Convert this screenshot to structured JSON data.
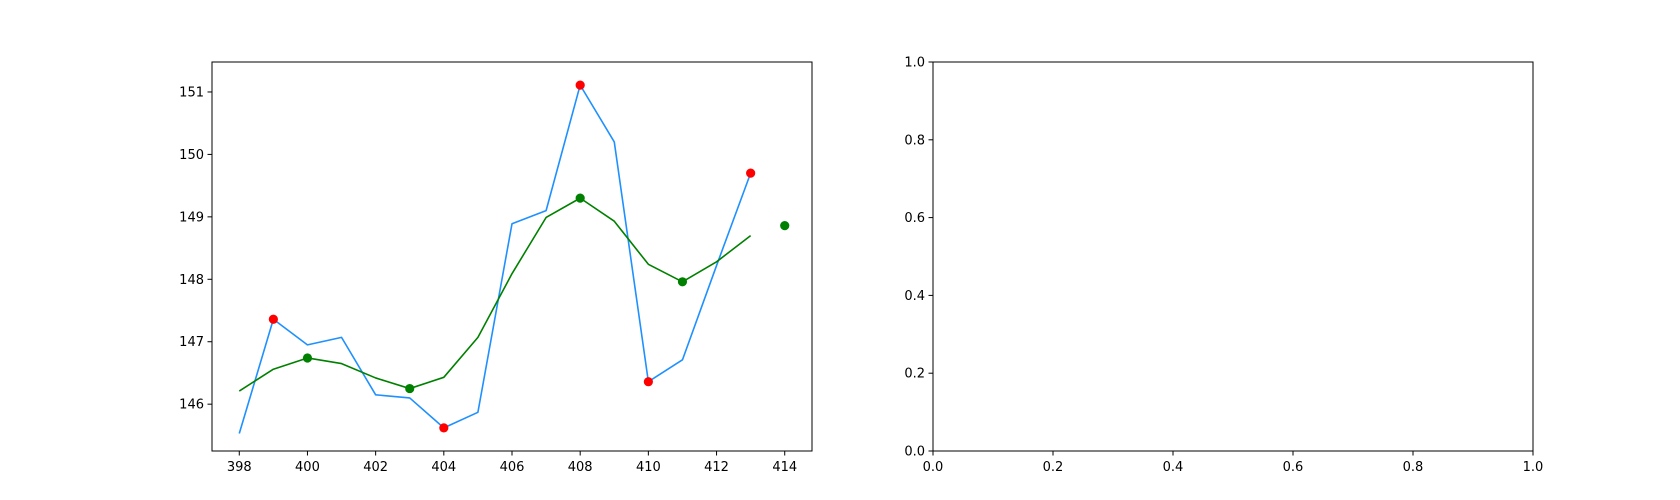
{
  "chart_data": [
    {
      "type": "line",
      "title": "",
      "xlabel": "",
      "ylabel": "",
      "xlim": [
        397.2,
        414.8
      ],
      "ylim": [
        145.25,
        151.48
      ],
      "xticks": [
        398,
        400,
        402,
        404,
        406,
        408,
        410,
        412,
        414
      ],
      "yticks": [
        146,
        147,
        148,
        149,
        150,
        151
      ],
      "grid": false,
      "series": [
        {
          "type": "line",
          "color": "#1e90ff",
          "x": [
            398,
            399,
            400,
            401,
            402,
            403,
            404,
            405,
            406,
            407,
            408,
            409,
            410,
            411,
            412,
            413
          ],
          "y": [
            145.53,
            147.36,
            146.95,
            147.07,
            146.15,
            146.1,
            145.62,
            145.87,
            148.89,
            149.1,
            151.11,
            150.2,
            146.36,
            146.71,
            148.22,
            149.7
          ]
        },
        {
          "type": "line",
          "color": "#008000",
          "x": [
            398,
            399,
            400,
            401,
            402,
            403,
            404,
            405,
            406,
            407,
            408,
            409,
            410,
            411,
            412,
            413
          ],
          "y": [
            146.21,
            146.56,
            146.74,
            146.65,
            146.42,
            146.25,
            146.43,
            147.07,
            148.09,
            148.99,
            149.3,
            148.93,
            148.24,
            147.96,
            148.28,
            148.7
          ]
        },
        {
          "type": "scatter",
          "color": "#ff0000",
          "x": [
            399,
            404,
            408,
            410,
            413
          ],
          "y": [
            147.36,
            145.62,
            151.11,
            146.36,
            149.7
          ]
        },
        {
          "type": "scatter",
          "color": "#008000",
          "x": [
            400,
            403,
            408,
            411,
            414
          ],
          "y": [
            146.74,
            146.25,
            149.3,
            147.96,
            148.86
          ]
        }
      ]
    },
    {
      "type": "line",
      "title": "",
      "xlabel": "",
      "ylabel": "",
      "xlim": [
        0.0,
        1.0
      ],
      "ylim": [
        0.0,
        1.0
      ],
      "xticks": [
        "0.0",
        "0.2",
        "0.4",
        "0.6",
        "0.8",
        "1.0"
      ],
      "yticks": [
        "0.0",
        "0.2",
        "0.4",
        "0.6",
        "0.8",
        "1.0"
      ],
      "grid": false,
      "series": []
    }
  ]
}
